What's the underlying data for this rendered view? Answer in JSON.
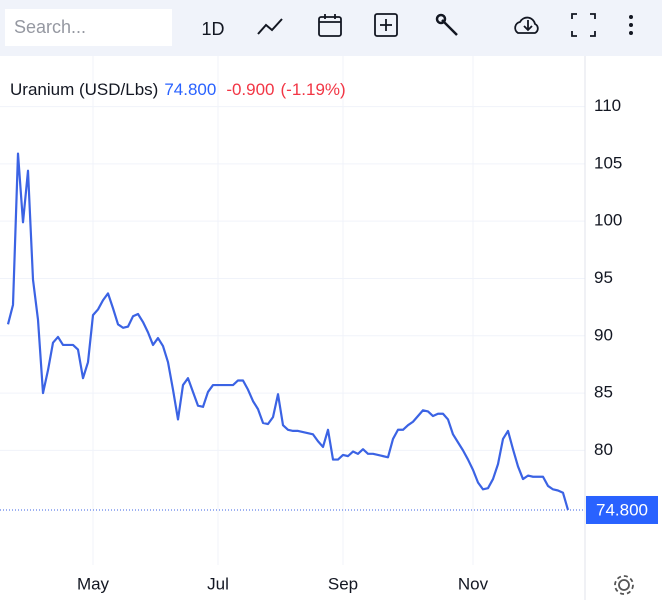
{
  "toolbar": {
    "search_placeholder": "Search...",
    "interval": "1D"
  },
  "chart_data": {
    "type": "line",
    "title": "Uranium (USD/Lbs)",
    "price": "74.800",
    "change": "-0.900",
    "change_pct": "(-1.19%)",
    "series": [
      {
        "name": "Uranium (USD/Lbs)",
        "color": "#3b63e4",
        "values": [
          91.0,
          92.7,
          105.9,
          99.9,
          104.4,
          94.9,
          91.4,
          85.0,
          87.0,
          89.4,
          89.9,
          89.2,
          89.2,
          89.2,
          88.8,
          86.3,
          87.7,
          91.8,
          92.3,
          93.1,
          93.7,
          92.4,
          91.0,
          90.7,
          90.8,
          91.7,
          91.9,
          91.2,
          90.3,
          89.2,
          89.8,
          89.1,
          87.7,
          85.3,
          82.7,
          85.7,
          86.3,
          85.1,
          83.9,
          83.8,
          85.1,
          85.7,
          85.7,
          85.7,
          85.7,
          85.7,
          86.1,
          86.1,
          85.3,
          84.3,
          83.6,
          82.4,
          82.3,
          82.9,
          84.9,
          82.2,
          81.8,
          81.7,
          81.7,
          81.6,
          81.5,
          81.4,
          80.8,
          80.3,
          81.8,
          79.2,
          79.2,
          79.6,
          79.5,
          79.9,
          79.7,
          80.1,
          79.7,
          79.7,
          79.6,
          79.5,
          79.4,
          81.0,
          81.8,
          81.8,
          82.2,
          82.5,
          83.0,
          83.5,
          83.4,
          83.0,
          83.2,
          83.2,
          82.7,
          81.4,
          80.7,
          80.0,
          79.2,
          78.3,
          77.2,
          76.6,
          76.7,
          77.5,
          78.8,
          81.0,
          81.7,
          80.1,
          78.6,
          77.5,
          77.8,
          77.7,
          77.7,
          77.7,
          76.9,
          76.6,
          76.5,
          76.3,
          74.8
        ]
      }
    ],
    "xlim": [
      0,
      112
    ],
    "xticks": [
      {
        "value": 17,
        "label": "May"
      },
      {
        "value": 42,
        "label": "Jul"
      },
      {
        "value": 67,
        "label": "Sep"
      },
      {
        "value": 93,
        "label": "Nov"
      }
    ],
    "ylim": [
      70,
      114.5
    ],
    "yticks": [
      80,
      85,
      90,
      95,
      100,
      105,
      110
    ],
    "grid": true
  }
}
